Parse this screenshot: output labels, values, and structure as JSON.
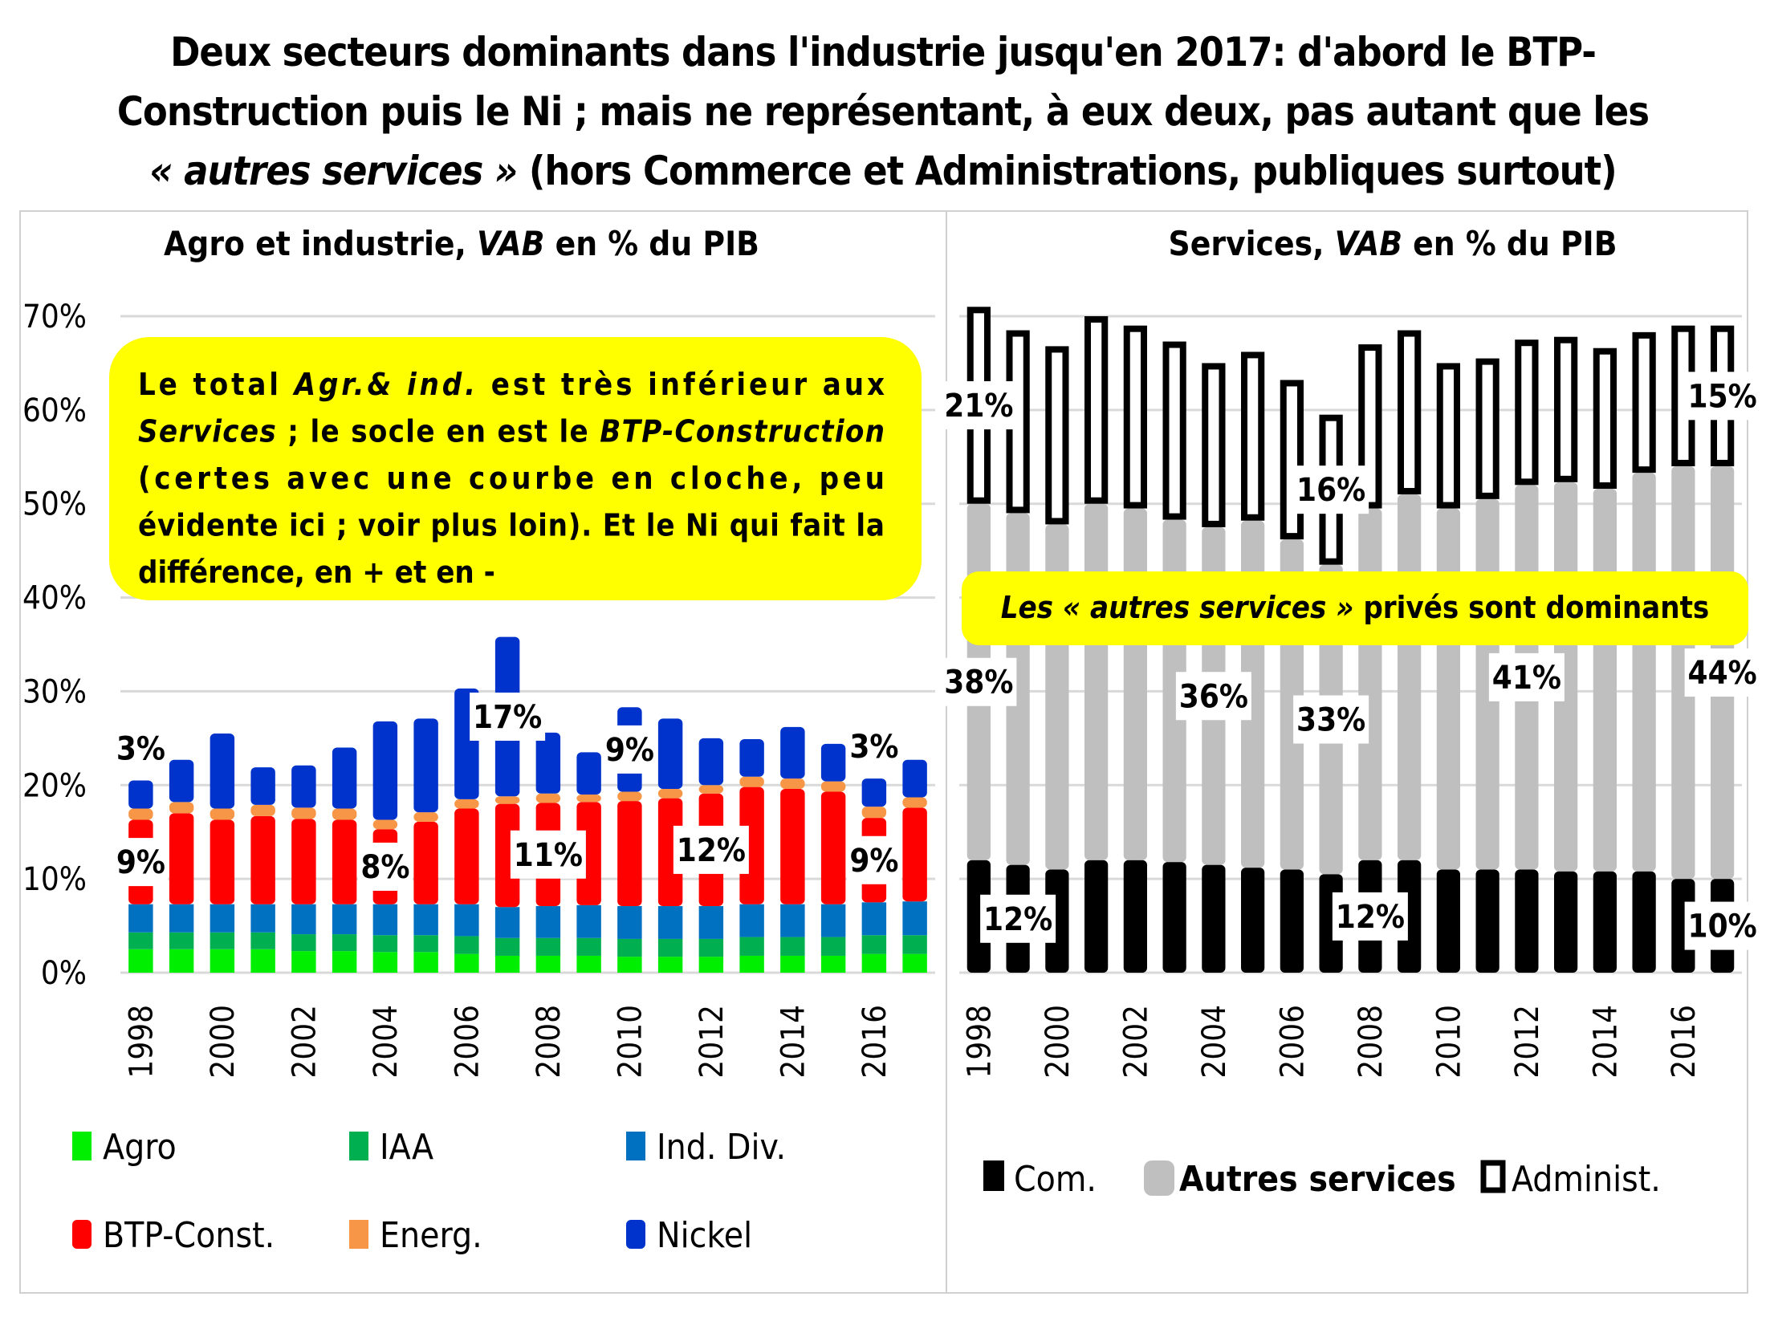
{
  "title": {
    "line1": "Deux secteurs dominants dans l'industrie jusqu'en 2017: d'abord le BTP-",
    "line2": "Construction puis le Ni ; mais ne représentant, à eux deux, pas autant que les",
    "line3_italic": "« autres services »",
    "line3_rest": " (hors Commerce et Administrations, publiques surtout)"
  },
  "chart_data": [
    {
      "type": "bar",
      "stacked": true,
      "title_plain": "Agro et industrie, ",
      "title_italic": "VAB",
      "title_tail": " en % du PIB",
      "xlabel": "",
      "ylabel": "",
      "ylim": [
        0,
        70
      ],
      "yticks": [
        "0%",
        "10%",
        "20%",
        "30%",
        "40%",
        "50%",
        "60%",
        "70%"
      ],
      "grid": true,
      "categories": [
        "1998",
        "1999",
        "2000",
        "2001",
        "2002",
        "2003",
        "2004",
        "2005",
        "2006",
        "2007",
        "2008",
        "2009",
        "2010",
        "2011",
        "2012",
        "2013",
        "2014",
        "2015",
        "2016",
        "2017"
      ],
      "xtick_labels": [
        "1998",
        "2000",
        "2002",
        "2004",
        "2006",
        "2008",
        "2010",
        "2012",
        "2014",
        "2016"
      ],
      "series": [
        {
          "name": "Agro",
          "color": "#00ee00",
          "values": [
            2.5,
            2.5,
            2.5,
            2.5,
            2.3,
            2.3,
            2.2,
            2.2,
            2.0,
            1.8,
            1.8,
            1.8,
            1.7,
            1.7,
            1.7,
            1.8,
            1.8,
            1.8,
            2.0,
            2.0
          ]
        },
        {
          "name": "IAA",
          "color": "#00b050",
          "values": [
            1.8,
            1.8,
            1.8,
            1.8,
            1.8,
            1.8,
            1.8,
            1.8,
            1.9,
            1.9,
            1.9,
            1.9,
            1.9,
            1.9,
            1.9,
            2.0,
            2.0,
            2.0,
            2.0,
            2.0
          ]
        },
        {
          "name": "Ind. Div.",
          "color": "#0070c0",
          "values": [
            3.0,
            3.0,
            3.0,
            3.0,
            3.2,
            3.2,
            3.3,
            3.3,
            3.4,
            3.3,
            3.4,
            3.5,
            3.5,
            3.5,
            3.5,
            3.5,
            3.5,
            3.5,
            3.5,
            3.6
          ]
        },
        {
          "name": "BTP-Const.",
          "color": "#ff0000",
          "values": [
            9,
            9.7,
            9.0,
            9.4,
            9.1,
            9.0,
            8.0,
            8.8,
            10.2,
            11,
            11,
            11,
            11.2,
            11.5,
            12,
            12.5,
            12.3,
            12,
            9,
            10
          ]
        },
        {
          "name": "Energ.",
          "color": "#f79646",
          "values": [
            1.2,
            1.2,
            1.2,
            1.2,
            1.2,
            1.2,
            1.0,
            1.0,
            1.0,
            0.8,
            1.0,
            0.8,
            1.0,
            1.0,
            0.9,
            1.1,
            1.1,
            1.1,
            1.2,
            1.1
          ]
        },
        {
          "name": "Nickel",
          "color": "#0033cc",
          "values": [
            3,
            4.5,
            8,
            4,
            4.5,
            6.5,
            10.5,
            10,
            11.8,
            17,
            6.5,
            4.5,
            9,
            7.5,
            5,
            4,
            5.5,
            4,
            3,
            4
          ]
        }
      ],
      "data_labels": [
        {
          "series": "Nickel",
          "category": "1998",
          "text": "3%"
        },
        {
          "series": "Nickel",
          "category": "2007",
          "text": "17%"
        },
        {
          "series": "Nickel",
          "category": "2010",
          "text": "9%"
        },
        {
          "series": "Nickel",
          "category": "2016",
          "text": "3%"
        },
        {
          "series": "BTP-Const.",
          "category": "1998",
          "text": "9%"
        },
        {
          "series": "BTP-Const.",
          "category": "2004",
          "text": "8%"
        },
        {
          "series": "BTP-Const.",
          "category": "2008",
          "text": "11%"
        },
        {
          "series": "BTP-Const.",
          "category": "2012",
          "text": "12%"
        },
        {
          "series": "BTP-Const.",
          "category": "2016",
          "text": "9%"
        }
      ],
      "annotation": {
        "segments": [
          {
            "t": "Le total ",
            "i": false
          },
          {
            "t": "Agr.& ind.",
            "i": true
          },
          {
            "t": " est très inférieur aux ",
            "i": false
          },
          {
            "t": "Services",
            "i": true
          },
          {
            "t": " ; le socle en est le ",
            "i": false
          },
          {
            "t": "BTP-Construction",
            "i": true
          },
          {
            "t": " (certes avec une courbe en cloche, peu évidente ici ; voir plus loin). Et le Ni qui fait la différence, en + et en -",
            "i": false
          }
        ],
        "background": "#ffff00"
      },
      "legend_position": "bottom",
      "legend": [
        "Agro",
        "IAA",
        "Ind. Div.",
        "BTP-Const.",
        "Energ.",
        "Nickel"
      ]
    },
    {
      "type": "bar",
      "stacked": true,
      "title_plain": "Services, ",
      "title_italic": "VAB",
      "title_tail": " en % du PIB",
      "ylim": [
        0,
        70
      ],
      "grid": true,
      "categories": [
        "1998",
        "1999",
        "2000",
        "2001",
        "2002",
        "2003",
        "2004",
        "2005",
        "2006",
        "2007",
        "2008",
        "2009",
        "2010",
        "2011",
        "2012",
        "2013",
        "2014",
        "2015",
        "2016",
        "2017"
      ],
      "xtick_labels": [
        "1998",
        "2000",
        "2002",
        "2004",
        "2006",
        "2008",
        "2010",
        "2012",
        "2014",
        "2016"
      ],
      "series": [
        {
          "name": "Com.",
          "color": "#000000",
          "values": [
            12,
            11.5,
            11,
            12,
            12,
            11.8,
            11.5,
            11.2,
            11,
            10.5,
            12,
            12,
            11,
            11,
            11,
            10.8,
            10.8,
            10.8,
            10,
            10
          ]
        },
        {
          "name": "Autres services",
          "color": "#bfbfbf",
          "values": [
            38,
            37.5,
            36.8,
            38,
            37.5,
            36.5,
            36,
            37,
            35.2,
            33,
            37.5,
            39,
            38.5,
            39.5,
            41,
            41.5,
            40.8,
            42.5,
            44,
            44
          ]
        },
        {
          "name": "Administ.",
          "color": "#ffffff",
          "values": [
            21,
            19.5,
            19,
            20,
            19.5,
            19,
            17.5,
            18,
            17,
            16,
            17.5,
            17.5,
            15.5,
            15,
            15.5,
            15.5,
            15,
            15,
            15,
            15
          ]
        }
      ],
      "data_labels": [
        {
          "series": "Administ.",
          "category": "1998",
          "text": "21%"
        },
        {
          "series": "Administ.",
          "category": "2007",
          "text": "16%"
        },
        {
          "series": "Administ.",
          "category": "2017",
          "text": "15%"
        },
        {
          "series": "Autres services",
          "category": "1998",
          "text": "38%"
        },
        {
          "series": "Autres services",
          "category": "2004",
          "text": "36%"
        },
        {
          "series": "Autres services",
          "category": "2007",
          "text": "33%"
        },
        {
          "series": "Autres services",
          "category": "2012",
          "text": "41%"
        },
        {
          "series": "Autres services",
          "category": "2017",
          "text": "44%"
        },
        {
          "series": "Com.",
          "category": "1999",
          "text": "12%"
        },
        {
          "series": "Com.",
          "category": "2008",
          "text": "12%"
        },
        {
          "series": "Com.",
          "category": "2017",
          "text": "10%"
        }
      ],
      "annotation": {
        "italic_part": "Les « autres services »",
        "rest": " privés sont dominants",
        "background": "#ffff00"
      },
      "legend_position": "bottom",
      "legend": [
        "Com.",
        "Autres services",
        "Administ."
      ]
    }
  ]
}
